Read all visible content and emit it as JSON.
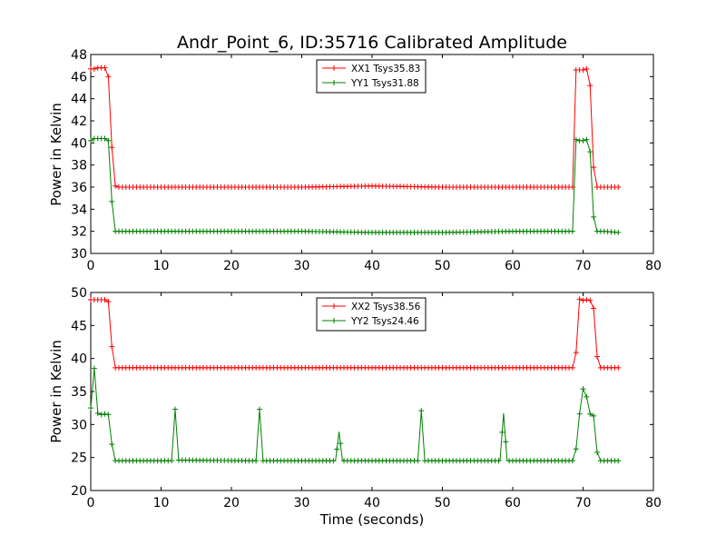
{
  "chart_data": [
    {
      "type": "line",
      "title": "Andr_Point_6, ID:35716 Calibrated Amplitude",
      "xlabel": "",
      "ylabel": "Power in Kelvin",
      "xlim": [
        0,
        80
      ],
      "ylim": [
        30,
        48
      ],
      "xticks": [
        0,
        10,
        20,
        30,
        40,
        50,
        60,
        70,
        80
      ],
      "yticks": [
        30,
        32,
        34,
        36,
        38,
        40,
        42,
        44,
        46,
        48
      ],
      "grid": false,
      "legend_position": "top-center",
      "x": [
        0.0,
        0.5,
        1.0,
        1.5,
        2.0,
        2.5,
        3.0,
        3.5,
        4.0,
        5.0,
        10.0,
        20.0,
        30.0,
        40.0,
        50.0,
        60.0,
        68.5,
        69.0,
        69.5,
        70.0,
        70.5,
        71.0,
        71.5,
        72.0,
        72.5,
        73.0,
        75.0
      ],
      "series": [
        {
          "name": "XX1 Tsys35.83",
          "color": "#ff0000",
          "values": [
            46.7,
            46.7,
            46.8,
            46.8,
            46.8,
            46.0,
            39.6,
            36.1,
            36.0,
            36.0,
            36.0,
            36.0,
            36.0,
            36.1,
            36.0,
            36.0,
            36.0,
            46.6,
            46.6,
            46.6,
            46.7,
            45.2,
            37.8,
            36.0,
            36.0,
            36.0,
            36.0
          ]
        },
        {
          "name": "YY1 Tsys31.88",
          "color": "#008000",
          "values": [
            40.2,
            40.4,
            40.4,
            40.4,
            40.4,
            40.2,
            34.7,
            32.0,
            32.0,
            32.0,
            32.0,
            32.0,
            32.0,
            31.9,
            31.9,
            32.0,
            32.0,
            40.3,
            40.2,
            40.2,
            40.3,
            39.2,
            33.3,
            32.0,
            32.0,
            32.0,
            31.9
          ]
        }
      ]
    },
    {
      "type": "line",
      "title": "",
      "xlabel": "Time (seconds)",
      "ylabel": "Power in Kelvin",
      "xlim": [
        0,
        80
      ],
      "ylim": [
        20,
        50
      ],
      "xticks": [
        0,
        10,
        20,
        30,
        40,
        50,
        60,
        70,
        80
      ],
      "yticks": [
        20,
        25,
        30,
        35,
        40,
        45,
        50
      ],
      "grid": false,
      "legend_position": "top-center",
      "x": [
        0.0,
        0.5,
        1.0,
        1.5,
        2.0,
        2.5,
        3.0,
        3.5,
        4.0,
        10.0,
        11.5,
        12.0,
        12.5,
        23.5,
        24.0,
        24.5,
        34.8,
        35.3,
        35.8,
        46.5,
        47.0,
        47.5,
        58.2,
        58.7,
        59.2,
        68.5,
        69.0,
        69.5,
        70.0,
        70.5,
        71.0,
        71.5,
        72.0,
        72.5,
        73.0,
        75.0
      ],
      "series": [
        {
          "name": "XX2 Tsys38.56",
          "color": "#ff0000",
          "values": [
            48.9,
            48.9,
            48.9,
            48.9,
            48.9,
            48.6,
            41.8,
            38.6,
            38.6,
            38.6,
            38.6,
            38.6,
            38.6,
            38.6,
            38.6,
            38.6,
            38.6,
            38.6,
            38.6,
            38.6,
            38.6,
            38.6,
            38.6,
            38.6,
            38.6,
            38.6,
            40.9,
            49.0,
            48.8,
            48.9,
            48.8,
            47.6,
            40.3,
            38.6,
            38.6,
            38.6
          ]
        },
        {
          "name": "YY2 Tsys24.46",
          "color": "#008000",
          "values": [
            32.5,
            38.5,
            31.7,
            31.5,
            31.6,
            31.5,
            27.0,
            24.5,
            24.5,
            24.5,
            24.5,
            32.3,
            24.6,
            24.5,
            32.3,
            24.5,
            24.5,
            28.9,
            24.5,
            24.5,
            32.1,
            24.5,
            24.5,
            31.7,
            24.5,
            24.5,
            26.3,
            31.6,
            35.4,
            34.2,
            31.6,
            31.3,
            25.8,
            24.5,
            24.5,
            24.5
          ]
        }
      ]
    }
  ]
}
